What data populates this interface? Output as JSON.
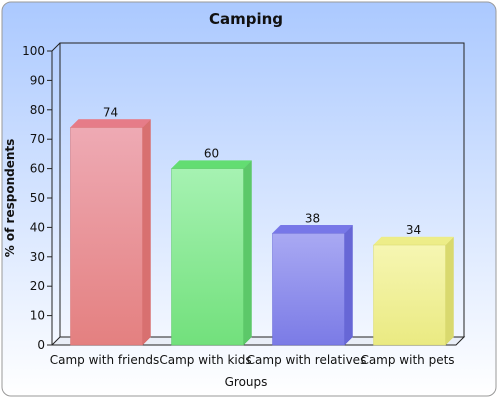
{
  "chart_data": {
    "type": "bar",
    "title": "Camping",
    "xlabel": "Groups",
    "ylabel": "% of respondents",
    "categories": [
      "Camp with friends",
      "Camp with kids",
      "Camp with relatives",
      "Camp with pets"
    ],
    "values": [
      74,
      60,
      38,
      34
    ],
    "value_labels": [
      "74",
      "60",
      "38",
      "34"
    ],
    "ylim": [
      0,
      100
    ],
    "yticks": [
      "0",
      "10",
      "20",
      "30",
      "40",
      "50",
      "60",
      "70",
      "80",
      "90",
      "100"
    ],
    "grid": false,
    "legend": "none",
    "style": "3d",
    "colors": {
      "bars": [
        {
          "front_top": "#eeaab4",
          "front_bottom": "#e48080",
          "side": "#d87070",
          "top": "#e67c88"
        },
        {
          "front_top": "#a6f2b2",
          "front_bottom": "#72e07c",
          "side": "#5cc869",
          "top": "#63dd72"
        },
        {
          "front_top": "#a9a9f3",
          "front_bottom": "#7b7be6",
          "side": "#6767d6",
          "top": "#7777e8"
        },
        {
          "front_top": "#f6f6b2",
          "front_bottom": "#eaea82",
          "side": "#d9d96e",
          "top": "#eded88"
        }
      ],
      "background_top": "#abc9ff",
      "background_bottom": "#ffffff"
    }
  }
}
